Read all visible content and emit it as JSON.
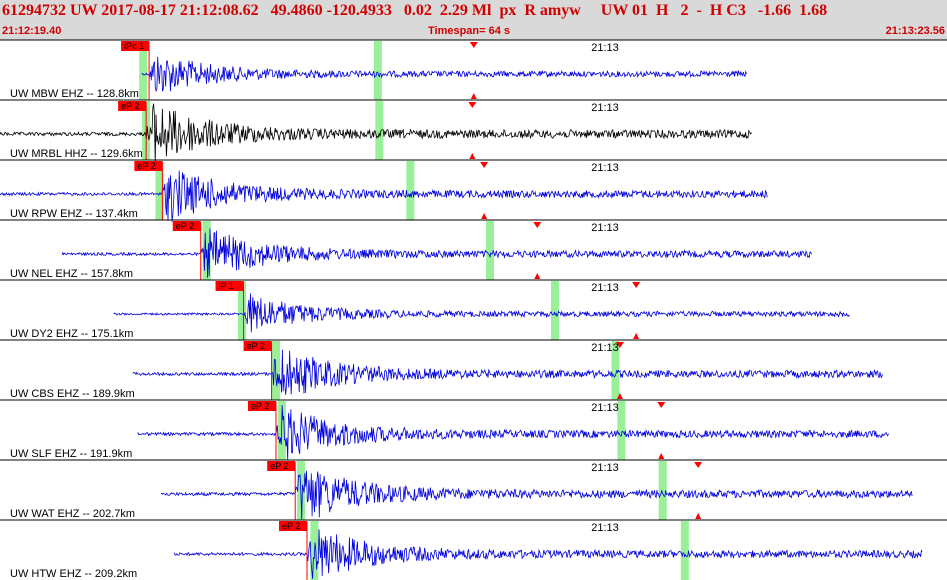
{
  "header": {
    "title": "61294732 UW 2017-08-17 21:12:08.62   49.4860 -120.4933   0.02  2.29 Ml  px  R amyw     UW 01  H   2  -  H C3   -1.66  1.68",
    "time_start": "21:12:19.40",
    "timespan": "Timespan=  64 s",
    "time_end": "21:13:23.56"
  },
  "colors": {
    "background": "#ffffff",
    "header_bg": "#d9d9d9",
    "header_text": "#d00000",
    "trace": "#0000dd",
    "trace_highlight": "#000000",
    "pick_line": "#ff0000",
    "pick_flag": "#ff0000",
    "green_marker": "#99f099",
    "grid": "#000000"
  },
  "chart_data": {
    "type": "line",
    "title": "",
    "xlabel": "",
    "ylabel": "",
    "x_range_s": [
      0,
      64.16
    ],
    "x_start_time": "21:12:19.40",
    "minute_tick_label": "21:13",
    "minute_tick_time_s": 40.6,
    "traces": [
      {
        "label": "UW MBW EHZ -- 128.8km",
        "pick_label": "iPc 1",
        "pick_time_s": 10.1,
        "green_markers_s": [
          9.7,
          25.6
        ],
        "arrival_time_s": 32.1,
        "data_start_s": 9.6,
        "data_end_s": 50.6,
        "amplitude": 0.55,
        "black": false
      },
      {
        "label": "UW MRBL HHZ -- 129.6km",
        "pick_label": "eP 2",
        "pick_time_s": 9.9,
        "green_markers_s": [
          9.9,
          25.7
        ],
        "arrival_time_s": 32.0,
        "data_start_s": 0,
        "data_end_s": 51.0,
        "amplitude": 0.8,
        "black": true
      },
      {
        "label": "UW RPW EHZ -- 137.4km",
        "pick_label": "eP 2",
        "pick_time_s": 11.0,
        "green_markers_s": [
          10.8,
          27.8
        ],
        "arrival_time_s": 32.8,
        "data_start_s": 0,
        "data_end_s": 52.0,
        "amplitude": 0.7,
        "black": false
      },
      {
        "label": "UW NEL EHZ -- 157.8km",
        "pick_label": "eP 2",
        "pick_time_s": 13.6,
        "green_markers_s": [
          14.0,
          33.2
        ],
        "arrival_time_s": 36.4,
        "data_start_s": 4.2,
        "data_end_s": 55.0,
        "amplitude": 0.65,
        "black": false
      },
      {
        "label": "UW DY2 EHZ -- 175.1km",
        "pick_label": "iP 1",
        "pick_time_s": 16.5,
        "green_markers_s": [
          16.4,
          37.6
        ],
        "arrival_time_s": 43.1,
        "data_start_s": 7.7,
        "data_end_s": 57.6,
        "amplitude": 0.5,
        "black": false
      },
      {
        "label": "UW CBS EHZ -- 189.9km",
        "pick_label": "eP 2",
        "pick_time_s": 18.4,
        "green_markers_s": [
          18.7,
          41.7
        ],
        "arrival_time_s": 42.0,
        "data_start_s": 9.0,
        "data_end_s": 59.8,
        "amplitude": 0.7,
        "black": false
      },
      {
        "label": "UW SLF EHZ -- 191.9km",
        "pick_label": "eP 2",
        "pick_time_s": 18.7,
        "green_markers_s": [
          19.1,
          42.1
        ],
        "arrival_time_s": 44.8,
        "data_start_s": 9.3,
        "data_end_s": 60.2,
        "amplitude": 0.7,
        "black": false
      },
      {
        "label": "UW WAT EHZ -- 202.7km",
        "pick_label": "eP 2",
        "pick_time_s": 20.0,
        "green_markers_s": [
          20.4,
          44.9
        ],
        "arrival_time_s": 47.3,
        "data_start_s": 10.9,
        "data_end_s": 61.8,
        "amplitude": 0.75,
        "black": false
      },
      {
        "label": "UW HTW EHZ -- 209.2km",
        "pick_label": "eP 2",
        "pick_time_s": 20.8,
        "green_markers_s": [
          21.3,
          46.4
        ],
        "arrival_time_s": null,
        "data_start_s": 11.8,
        "data_end_s": 62.5,
        "amplitude": 0.7,
        "black": false
      }
    ]
  }
}
